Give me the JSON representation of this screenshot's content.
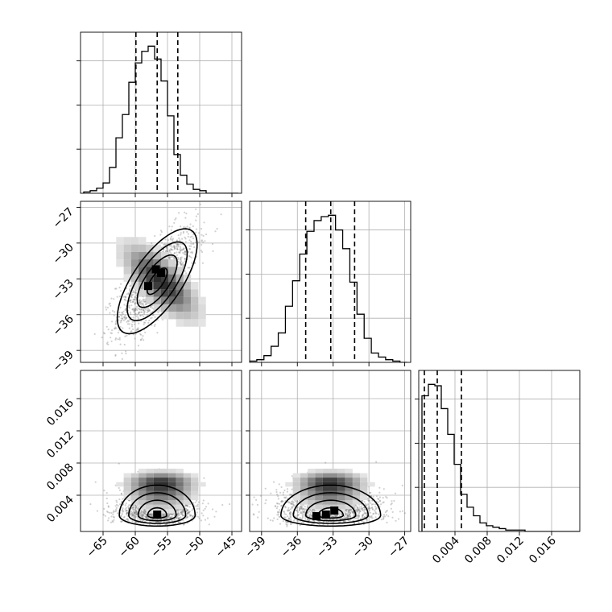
{
  "chart_data": {
    "type": "corner",
    "title": "",
    "parameters": [
      {
        "name": "",
        "range": [
          -68.5,
          -43.5
        ],
        "ticks": [
          -65,
          -60,
          -55,
          -50,
          -45
        ],
        "tick_labels": [
          "−65",
          "−60",
          "−55",
          "−50",
          "−45"
        ],
        "quantiles": [
          -59.9,
          -56.6,
          -53.4
        ],
        "hist_edges_start": -68.0,
        "hist_bin_width": 1.0,
        "hist_counts": [
          1,
          2,
          4,
          8,
          20,
          43,
          61,
          86,
          101,
          110,
          114,
          104,
          87,
          60,
          30,
          14,
          7,
          3,
          2,
          0,
          0,
          0,
          0,
          0
        ]
      },
      {
        "name": "",
        "range": [
          -40.0,
          -26.5
        ],
        "ticks": [
          -39,
          -36,
          -33,
          -30,
          -27
        ],
        "tick_labels": [
          "−39",
          "−36",
          "−33",
          "−30",
          "−27"
        ],
        "quantiles": [
          -35.3,
          -33.2,
          -31.2
        ],
        "hist_edges_start": -40.0,
        "hist_bin_width": 0.6,
        "hist_counts": [
          1,
          2,
          5,
          12,
          22,
          42,
          61,
          81,
          98,
          106,
          109,
          110,
          99,
          85,
          60,
          36,
          18,
          7,
          4,
          2,
          1,
          0
        ]
      },
      {
        "name": "",
        "range": [
          -0.0005,
          0.0195
        ],
        "ticks": [
          0.004,
          0.008,
          0.012,
          0.016
        ],
        "tick_labels": [
          "0.004",
          "0.008",
          "0.012",
          "0.016"
        ],
        "quantiles": [
          0.0002,
          0.0018,
          0.0048
        ],
        "hist_edges_start": -0.0001,
        "hist_bin_width": 0.0008,
        "hist_counts": [
          95,
          103,
          102,
          86,
          68,
          47,
          26,
          17,
          11,
          6,
          4,
          3,
          2,
          1,
          1,
          1,
          0,
          0,
          0,
          0,
          0,
          0,
          0,
          0,
          0
        ]
      }
    ],
    "pairs": [
      {
        "row": 1,
        "col": 0,
        "mean": [
          -56.6,
          -33.2
        ],
        "sd": [
          3.1,
          2.2
        ],
        "corr": 0.7,
        "peak_cells": [
          [
            -58.0,
            -33.6
          ],
          [
            -56.8,
            -32.2
          ],
          [
            -56.0,
            -32.5
          ]
        ]
      },
      {
        "row": 2,
        "col": 0,
        "mean": [
          -56.6,
          0.0022
        ],
        "sd": [
          3.1,
          0.0022
        ],
        "corr": 0.0,
        "peak_cells": [
          [
            -56.6,
            0.0016
          ]
        ]
      },
      {
        "row": 2,
        "col": 1,
        "mean": [
          -33.2,
          0.0022
        ],
        "sd": [
          2.2,
          0.0022
        ],
        "corr": 0.15,
        "peak_cells": [
          [
            -34.4,
            0.0014
          ],
          [
            -33.6,
            0.0016
          ],
          [
            -32.9,
            0.0021
          ]
        ]
      }
    ],
    "grid": true,
    "legend": "none"
  }
}
